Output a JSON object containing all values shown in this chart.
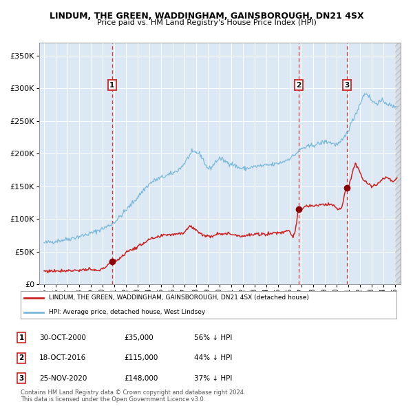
{
  "title": "LINDUM, THE GREEN, WADDINGHAM, GAINSBOROUGH, DN21 4SX",
  "subtitle": "Price paid vs. HM Land Registry's House Price Index (HPI)",
  "ylim": [
    0,
    370000
  ],
  "yticks": [
    0,
    50000,
    100000,
    150000,
    200000,
    250000,
    300000,
    350000
  ],
  "ytick_labels": [
    "£0",
    "£50K",
    "£100K",
    "£150K",
    "£200K",
    "£250K",
    "£300K",
    "£350K"
  ],
  "xlim_start": 1994.6,
  "xlim_end": 2025.5,
  "bg_color": "#dce9f5",
  "grid_color": "#ffffff",
  "hpi_color": "#7ab8d9",
  "price_color": "#cc2222",
  "sale_marker_color": "#8b0000",
  "sale1_x": 2000.83,
  "sale1_y": 35000,
  "sale2_x": 2016.79,
  "sale2_y": 115000,
  "sale3_x": 2020.9,
  "sale3_y": 148000,
  "vline_color": "#dd3333",
  "legend_label_red": "LINDUM, THE GREEN, WADDINGHAM, GAINSBOROUGH, DN21 4SX (detached house)",
  "legend_label_blue": "HPI: Average price, detached house, West Lindsey",
  "footer_text": "Contains HM Land Registry data © Crown copyright and database right 2024.\nThis data is licensed under the Open Government Licence v3.0.",
  "table_rows": [
    {
      "num": "1",
      "date": "30-OCT-2000",
      "price": "£35,000",
      "hpi": "56% ↓ HPI"
    },
    {
      "num": "2",
      "date": "18-OCT-2016",
      "price": "£115,000",
      "hpi": "44% ↓ HPI"
    },
    {
      "num": "3",
      "date": "25-NOV-2020",
      "price": "£148,000",
      "hpi": "37% ↓ HPI"
    }
  ]
}
